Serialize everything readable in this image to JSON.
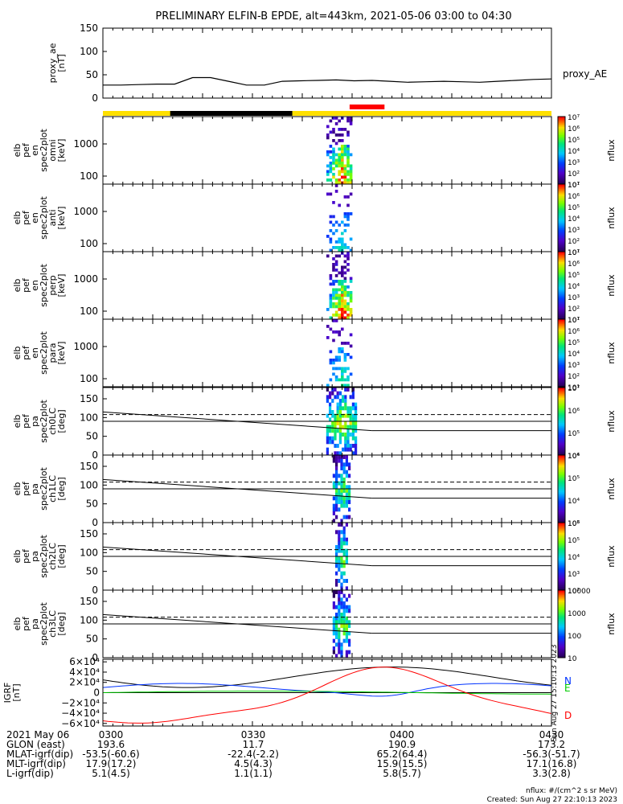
{
  "title": "PRELIMINARY ELFIN-B EPDE, alt=443km, 2021-05-06 03:00 to 04:30",
  "ae_panel": {
    "ylabel": [
      "proxy_ae",
      "[nT]"
    ],
    "yticks": [
      "150",
      "100",
      "50",
      "0"
    ],
    "ylim": [
      0,
      150
    ],
    "legend": "proxy_AE",
    "values": [
      28,
      28,
      29,
      30,
      30,
      44,
      44,
      36,
      28,
      28,
      36,
      37,
      38,
      39,
      37,
      38,
      36,
      34,
      35,
      36,
      35,
      34,
      36,
      38,
      40,
      41
    ]
  },
  "status_bar": {
    "colors": {
      "base": "#ffe000",
      "eclipse": "#000000",
      "science": "#ff0000"
    },
    "eclipse_span_min": [
      13.5,
      38
    ],
    "science_span_min": [
      49.5,
      56.5
    ]
  },
  "spec_panels": [
    {
      "ylabel": [
        "elb",
        "pef",
        "en",
        "spec2plot",
        "omni",
        "[keV]"
      ],
      "yticks": [
        "1000",
        "100"
      ],
      "colorbar_ticks": [
        "10⁷",
        "10⁶",
        "10⁵",
        "10⁴",
        "10³",
        "10²",
        "10¹"
      ],
      "colorbar_label": "nflux",
      "intensity": 1.0
    },
    {
      "ylabel": [
        "elb",
        "pef",
        "en",
        "spec2plot",
        "anti",
        "[keV]"
      ],
      "yticks": [
        "1000",
        "100"
      ],
      "colorbar_ticks": [
        "10⁷",
        "10⁶",
        "10⁵",
        "10⁴",
        "10³",
        "10²",
        "10¹"
      ],
      "colorbar_label": "nflux",
      "intensity": 0.45
    },
    {
      "ylabel": [
        "elb",
        "pef",
        "en",
        "spec2plot",
        "perp",
        "[keV]"
      ],
      "yticks": [
        "1000",
        "100"
      ],
      "colorbar_ticks": [
        "10⁷",
        "10⁶",
        "10⁵",
        "10⁴",
        "10³",
        "10²",
        "10¹"
      ],
      "colorbar_label": "nflux",
      "intensity": 1.0
    },
    {
      "ylabel": [
        "elb",
        "pef",
        "en",
        "spec2plot",
        "para",
        "[keV]"
      ],
      "yticks": [
        "1000",
        "100"
      ],
      "colorbar_ticks": [
        "10⁷",
        "10⁶",
        "10⁵",
        "10⁴",
        "10³",
        "10²",
        "10¹"
      ],
      "colorbar_label": "nflux",
      "intensity": 0.5
    }
  ],
  "pa_panels": [
    {
      "ylabel": [
        "elb",
        "pef",
        "pa",
        "spec2plot",
        "ch0LC",
        "[deg]"
      ],
      "yticks": [
        "150",
        "100",
        "50",
        "0"
      ],
      "colorbar_ticks": [
        "10⁷",
        "10⁶",
        "10⁵",
        "10⁴"
      ],
      "colorbar_label": "nflux",
      "width": 1.0
    },
    {
      "ylabel": [
        "elb",
        "pef",
        "pa",
        "spec2plot",
        "ch1LC",
        "[deg]"
      ],
      "yticks": [
        "150",
        "100",
        "50",
        "0"
      ],
      "colorbar_ticks": [
        "10⁶",
        "10⁵",
        "10⁴",
        "10³"
      ],
      "colorbar_label": "nflux",
      "width": 0.55
    },
    {
      "ylabel": [
        "elb",
        "pef",
        "pa",
        "spec2plot",
        "ch2LC",
        "[deg]"
      ],
      "yticks": [
        "150",
        "100",
        "50",
        "0"
      ],
      "colorbar_ticks": [
        "10⁶",
        "10⁵",
        "10⁴",
        "10³",
        "10²"
      ],
      "colorbar_label": "nflux",
      "width": 0.45
    },
    {
      "ylabel": [
        "elb",
        "pef",
        "pa",
        "spec2plot",
        "ch3LC",
        "[deg]"
      ],
      "yticks": [
        "150",
        "100",
        "50",
        "0"
      ],
      "colorbar_ticks": [
        "10000",
        "1000",
        "100",
        "10"
      ],
      "colorbar_label": "nflux",
      "width": 0.6
    }
  ],
  "igrf_panel": {
    "ylabel": [
      "IGRF",
      "[nT]"
    ],
    "yticks": [
      "6×10⁴",
      "4×10⁴",
      "2×10⁴",
      "0",
      "−2×10⁴",
      "−4×10⁴",
      "−6×10⁴"
    ],
    "labels": [
      "N",
      "E",
      "D"
    ],
    "label_colors": [
      "#0033ff",
      "#00cc00",
      "#ff0000"
    ],
    "side_note": "Sun Aug 27 15:10:13 2023"
  },
  "footer": {
    "rows": [
      [
        "2021 May 06",
        "0300",
        "0330",
        "0400",
        "0430"
      ],
      [
        "GLON (east)",
        "193.6",
        "11.7",
        "190.9",
        "173.2"
      ],
      [
        "MLAT-igrf(dip)",
        "-53.5(-60.6)",
        "-22.4(-2.2)",
        "65.2(64.4)",
        "-56.3(-51.7)"
      ],
      [
        "MLT-igrf(dip)",
        "17.9(17.2)",
        "4.5(4.3)",
        "15.9(15.5)",
        "17.1(16.8)"
      ],
      [
        "L-igrf(dip)",
        "5.1(4.5)",
        "1.1(1.1)",
        "5.8(5.7)",
        "3.3(2.8)"
      ]
    ],
    "unit_note": "nflux: #/(cm^2 s sr MeV)",
    "created": "Created: Sun Aug 27 22:10:13 2023"
  },
  "chart_data": {
    "type": "line",
    "title": "PRELIMINARY ELFIN-B EPDE, alt=443km, 2021-05-06 03:00 to 04:30",
    "x_range": [
      "03:00",
      "04:30"
    ],
    "xticks": [
      "0300",
      "0330",
      "0400",
      "0430"
    ],
    "series": [
      {
        "name": "proxy_AE",
        "unit": "nT",
        "values": [
          28,
          28,
          29,
          30,
          30,
          44,
          44,
          36,
          28,
          28,
          36,
          37,
          38,
          39,
          37,
          38,
          36,
          34,
          35,
          36,
          35,
          34,
          36,
          38,
          40,
          41
        ]
      }
    ],
    "ylim": [
      0,
      150
    ]
  }
}
